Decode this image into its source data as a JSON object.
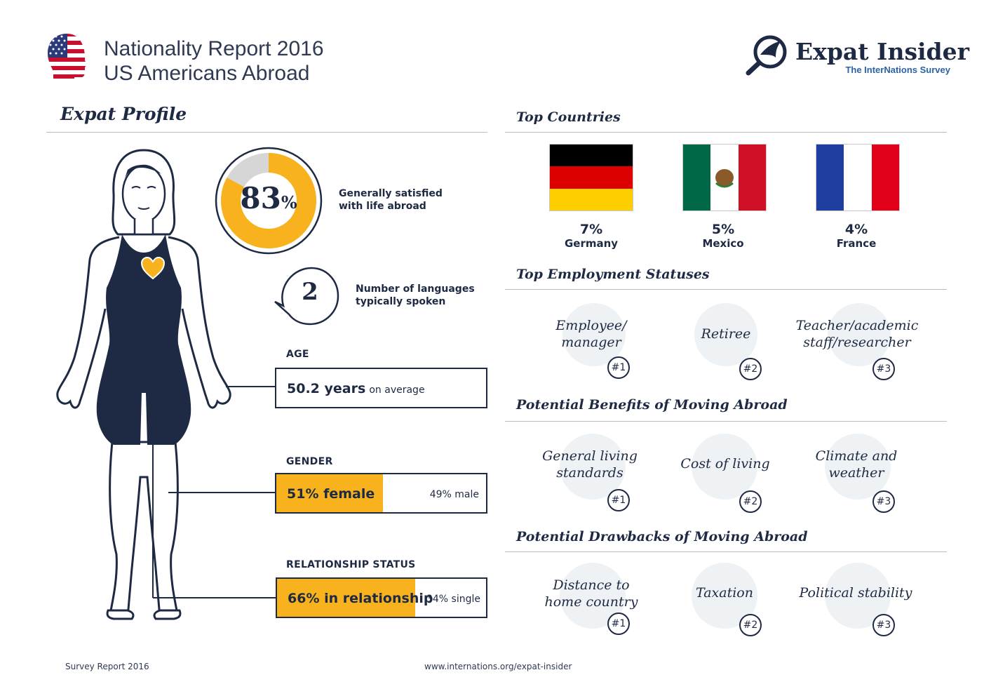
{
  "header": {
    "title_line1": "Nationality Report 2016",
    "title_line2": "US Americans Abroad",
    "brand_name": "Expat Insider",
    "brand_sub": "The InterNations Survey"
  },
  "profile": {
    "heading": "Expat Profile",
    "satisfaction": {
      "value": 83,
      "number": "83",
      "unit": "%",
      "label_line1": "Generally satisfied",
      "label_line2": "with life abroad"
    },
    "languages": {
      "value": "2",
      "label_line1": "Number of languages",
      "label_line2": "typically spoken"
    },
    "age": {
      "label": "AGE",
      "value": "50.2 years",
      "suffix": "on average"
    },
    "gender": {
      "label": "GENDER",
      "female_fraction": 0.51,
      "primary": "51% female",
      "secondary": "49% male"
    },
    "relationship": {
      "label": "RELATIONSHIP STATUS",
      "in_relationship_fraction": 0.66,
      "primary": "66% in relationship",
      "secondary": "34% single"
    }
  },
  "top_countries": {
    "heading": "Top Countries",
    "items": [
      {
        "value": "7%",
        "name": "Germany"
      },
      {
        "value": "5%",
        "name": "Mexico"
      },
      {
        "value": "4%",
        "name": "France"
      }
    ]
  },
  "employment": {
    "heading": "Top Employment Statuses",
    "items": [
      {
        "line1": "Employee/",
        "line2": "manager",
        "rank": "#1"
      },
      {
        "line1": "Retiree",
        "line2": "",
        "rank": "#2"
      },
      {
        "line1": "Teacher/academic",
        "line2": "staff/researcher",
        "rank": "#3"
      }
    ]
  },
  "benefits": {
    "heading": "Potential Benefits of Moving Abroad",
    "items": [
      {
        "line1": "General living",
        "line2": "standards",
        "rank": "#1"
      },
      {
        "line1": "Cost of living",
        "line2": "",
        "rank": "#2"
      },
      {
        "line1": "Climate and",
        "line2": "weather",
        "rank": "#3"
      }
    ]
  },
  "drawbacks": {
    "heading": "Potential Drawbacks of Moving Abroad",
    "items": [
      {
        "line1": "Distance to",
        "line2": "home country",
        "rank": "#1"
      },
      {
        "line1": "Taxation",
        "line2": "",
        "rank": "#2"
      },
      {
        "line1": "Political stability",
        "line2": "",
        "rank": "#3"
      }
    ]
  },
  "footer": {
    "left": "Survey Report 2016",
    "center": "www.internations.org/expat-insider"
  },
  "colors": {
    "accent": "#f7b21e",
    "navy": "#1e2a44",
    "link_blue": "#2b63a8"
  },
  "icons": [
    "us-flag-head-icon",
    "expat-insider-logo-icon",
    "heart-icon",
    "germany-flag-icon",
    "mexico-flag-icon",
    "france-flag-icon"
  ]
}
